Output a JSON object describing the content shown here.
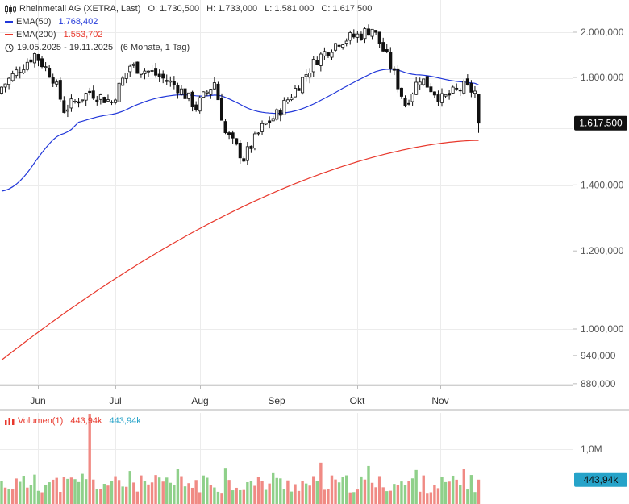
{
  "header": {
    "instrument": "Rheinmetall AG (XETRA, Last)",
    "open": "O: 1.730,500",
    "high": "H: 1.733,000",
    "low": "L: 1.581,000",
    "close": "C: 1.617,500",
    "ema50_label": "EMA(50)",
    "ema50_value": "1.768,402",
    "ema200_label": "EMA(200)",
    "ema200_value": "1.553,702",
    "range_dates": "19.05.2025 - 19.11.2025",
    "range_span": "(6 Monate, 1 Tag)",
    "icon_main": "candlestick-icon",
    "icon_range": "clock-icon"
  },
  "volume_header": {
    "label": "Volumen(1)",
    "value_red": "443,94k",
    "value_cyan": "443,94k",
    "icon": "volume-bars-icon"
  },
  "colors": {
    "up_candle": "#ffffff",
    "down_candle": "#111111",
    "ema50": "#2137d9",
    "ema200": "#e8382c",
    "volume_up": "#8fd08a",
    "volume_down": "#f08a84",
    "volume_marker": "#26a3c9"
  },
  "chart_data": {
    "type": "candlestick",
    "x_ticks": [
      "Jun",
      "Jul",
      "Aug",
      "Sep",
      "Okt",
      "Nov"
    ],
    "y_scale": "log",
    "y_ticks": [
      {
        "value": 2000000,
        "label": "2.000,000"
      },
      {
        "value": 1800000,
        "label": "1.800,000"
      },
      {
        "value": 1400000,
        "label": "1.400,000"
      },
      {
        "value": 1200000,
        "label": "1.200,000"
      },
      {
        "value": 1000000,
        "label": "1.000,000"
      },
      {
        "value": 940000,
        "label": "940,000"
      },
      {
        "value": 880000,
        "label": "880,000"
      }
    ],
    "last_price": {
      "value": 1617500,
      "label": "1.617,500"
    },
    "key_points": {
      "start_close": 1760000,
      "early_june_high": 1900000,
      "july_high": 1850000,
      "august_low": 1490000,
      "september_high": 2020000,
      "last_open": 1730500,
      "last_high": 1733000,
      "last_low": 1581000,
      "last_close": 1617500
    },
    "ema50": {
      "name": "EMA(50)",
      "start": 1380000,
      "end": 1768402
    },
    "ema200": {
      "name": "EMA(200)",
      "start": 930000,
      "end": 1553702
    },
    "volume": {
      "y_ticks": [
        {
          "value": 1000000,
          "label": "1,0M"
        }
      ],
      "last_value": 443940,
      "last_label": "443,94k",
      "peak_value": 1640000
    }
  }
}
